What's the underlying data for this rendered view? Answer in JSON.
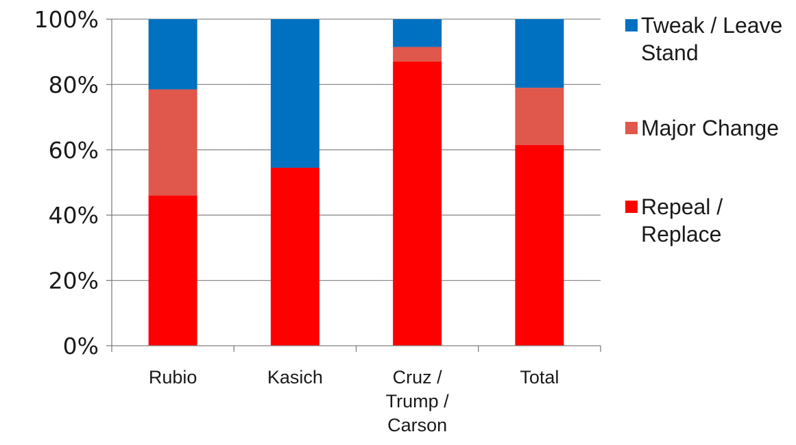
{
  "chart_data": {
    "type": "bar",
    "stacked": true,
    "percent": true,
    "categories": [
      [
        "Rubio"
      ],
      [
        "Kasich"
      ],
      [
        "Cruz /",
        "Trump /",
        "Carson"
      ],
      [
        "Total"
      ]
    ],
    "series": [
      {
        "name": [
          "Repeal /",
          "Replace"
        ],
        "color": "#ff0000",
        "values": [
          46,
          54.5,
          87,
          61.5
        ]
      },
      {
        "name": [
          "Major Change"
        ],
        "color": "#e0574c",
        "values": [
          32.5,
          0,
          4.5,
          17.5
        ]
      },
      {
        "name": [
          "Tweak / Leave",
          "Stand"
        ],
        "color": "#0070c0",
        "values": [
          21.5,
          45.5,
          8.5,
          21
        ]
      }
    ],
    "ylim": [
      0,
      100
    ],
    "yticks": [
      "0%",
      "20%",
      "40%",
      "60%",
      "80%",
      "100%"
    ],
    "ytick_values": [
      0,
      20,
      40,
      60,
      80,
      100
    ],
    "grid": true,
    "legend_position": "right",
    "legend_order": [
      2,
      1,
      0
    ],
    "title": "",
    "xlabel": "",
    "ylabel": ""
  }
}
